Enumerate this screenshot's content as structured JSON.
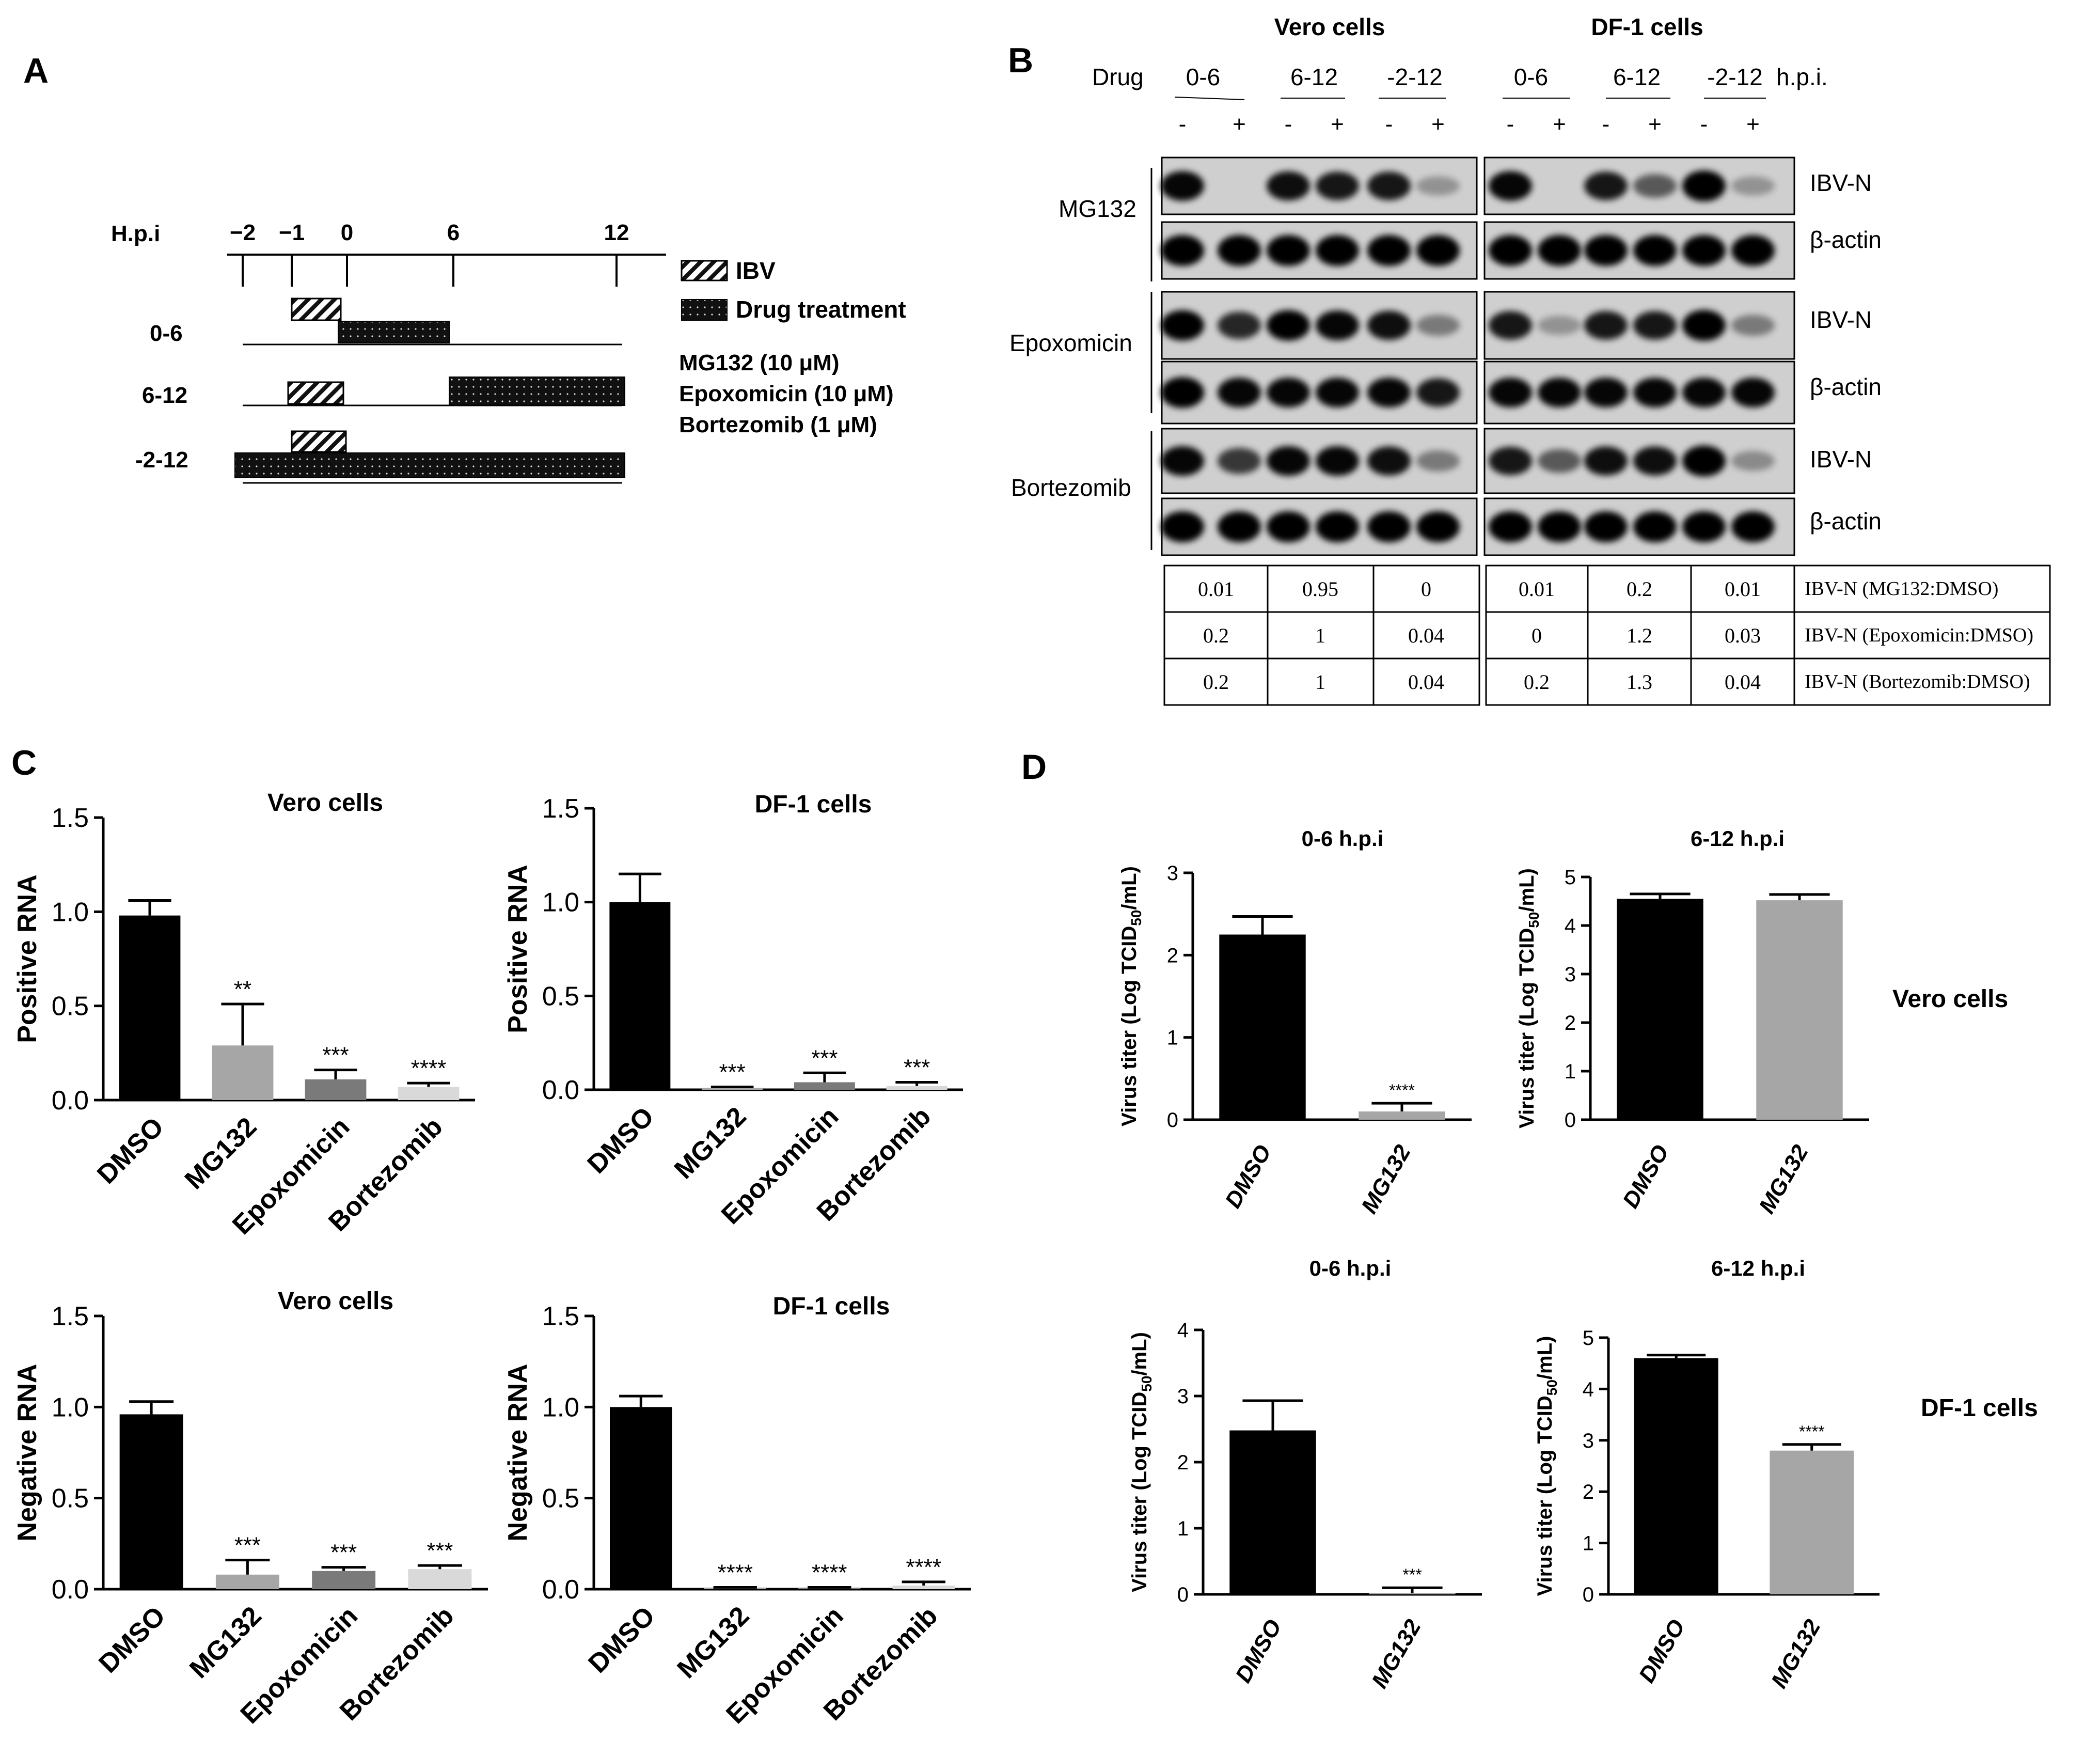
{
  "panels": {
    "a": "A",
    "b": "B",
    "c": "C",
    "d": "D"
  },
  "timeline": {
    "hpi_label": "H.p.i",
    "ticks": [
      "−2",
      "−1",
      "0",
      "6",
      "12"
    ],
    "rows": [
      "0-6",
      "6-12",
      "-2-12"
    ],
    "legend_ibv": "IBV",
    "legend_drug": "Drug treatment",
    "drugs": [
      "MG132 (10 μM)",
      "Epoxomicin (10 μM)",
      "Bortezomib (1 μM)"
    ]
  },
  "western": {
    "vero_title": "Vero cells",
    "df1_title": "DF-1 cells",
    "drug_label": "Drug",
    "vero_groups": [
      "0-6",
      "6-12",
      "-2-12"
    ],
    "df1_groups": [
      "0-6",
      "6-12",
      "-2-12"
    ],
    "hpi_suffix": "h.p.i.",
    "signs": [
      "-",
      "+"
    ],
    "treatments": [
      "MG132",
      "Epoxomicin",
      "Bortezomib"
    ],
    "band_labels": [
      "IBV-N",
      "β-actin"
    ],
    "vero_table": [
      [
        "0.01",
        "0.95",
        "0"
      ],
      [
        "0.2",
        "1",
        "0.04"
      ],
      [
        "0.2",
        "1",
        "0.04"
      ]
    ],
    "df1_table": [
      [
        "0.01",
        "0.2",
        "0.01"
      ],
      [
        "0",
        "1.2",
        "0.03"
      ],
      [
        "0.2",
        "1.3",
        "0.04"
      ]
    ],
    "table_row_labels": [
      "IBV-N (MG132:DMSO)",
      "IBV-N (Epoxomicin:DMSO)",
      "IBV-N (Bortezomib:DMSO)"
    ]
  },
  "side_labels": {
    "vero": "Vero cells",
    "df1": "DF-1 cells"
  },
  "chart_data": [
    {
      "id": "c1",
      "type": "bar",
      "title": "Vero cells",
      "ylabel": "Positive RNA",
      "categories": [
        "DMSO",
        "MG132",
        "Epoxomicin",
        "Bortezomib"
      ],
      "values": [
        0.98,
        0.29,
        0.11,
        0.07
      ],
      "errors": [
        0.08,
        0.22,
        0.05,
        0.02
      ],
      "significance": [
        "",
        "**",
        "***",
        "****"
      ],
      "colors": [
        "#000000",
        "#a6a6a6",
        "#7a7a7a",
        "#d9d9d9"
      ],
      "ylim": [
        0,
        1.5
      ],
      "yticks": [
        "0.0",
        "0.5",
        "1.0",
        "1.5"
      ]
    },
    {
      "id": "c2",
      "type": "bar",
      "title": "DF-1 cells",
      "ylabel": "Positive RNA",
      "categories": [
        "DMSO",
        "MG132",
        "Epoxomicin",
        "Bortezomib"
      ],
      "values": [
        1.0,
        0.01,
        0.04,
        0.02
      ],
      "errors": [
        0.15,
        0.005,
        0.05,
        0.02
      ],
      "significance": [
        "",
        "***",
        "***",
        "***"
      ],
      "colors": [
        "#000000",
        "#a6a6a6",
        "#7a7a7a",
        "#d9d9d9"
      ],
      "ylim": [
        0,
        1.5
      ],
      "yticks": [
        "0.0",
        "0.5",
        "1.0",
        "1.5"
      ]
    },
    {
      "id": "c3",
      "type": "bar",
      "title": "Vero cells",
      "ylabel": "Negative RNA",
      "categories": [
        "DMSO",
        "MG132",
        "Epoxomicin",
        "Bortezomib"
      ],
      "values": [
        0.96,
        0.08,
        0.1,
        0.11
      ],
      "errors": [
        0.07,
        0.08,
        0.02,
        0.02
      ],
      "significance": [
        "",
        "***",
        "***",
        "***"
      ],
      "colors": [
        "#000000",
        "#a6a6a6",
        "#7a7a7a",
        "#d9d9d9"
      ],
      "ylim": [
        0,
        1.5
      ],
      "yticks": [
        "0.0",
        "0.5",
        "1.0",
        "1.5"
      ]
    },
    {
      "id": "c4",
      "type": "bar",
      "title": "DF-1 cells",
      "ylabel": "Negative RNA",
      "categories": [
        "DMSO",
        "MG132",
        "Epoxomicin",
        "Bortezomib"
      ],
      "values": [
        1.0,
        0.005,
        0.005,
        0.02
      ],
      "errors": [
        0.06,
        0.005,
        0.005,
        0.02
      ],
      "significance": [
        "",
        "****",
        "****",
        "****"
      ],
      "colors": [
        "#000000",
        "#a6a6a6",
        "#7a7a7a",
        "#d9d9d9"
      ],
      "ylim": [
        0,
        1.5
      ],
      "yticks": [
        "0.0",
        "0.5",
        "1.0",
        "1.5"
      ]
    },
    {
      "id": "d1",
      "type": "bar",
      "title": "0-6 h.p.i",
      "ylabel": "Virus titer (Log TCID50/mL)",
      "categories": [
        "DMSO",
        "MG132"
      ],
      "values": [
        2.25,
        0.1
      ],
      "errors": [
        0.22,
        0.1
      ],
      "significance": [
        "",
        "****"
      ],
      "colors": [
        "#000000",
        "#a6a6a6"
      ],
      "ylim": [
        0,
        3
      ],
      "yticks": [
        "0",
        "1",
        "2",
        "3"
      ]
    },
    {
      "id": "d2",
      "type": "bar",
      "title": "6-12 h.p.i",
      "ylabel": "Virus titer (Log TCID50/mL)",
      "categories": [
        "DMSO",
        "MG132"
      ],
      "values": [
        4.55,
        4.52
      ],
      "errors": [
        0.1,
        0.12
      ],
      "significance": [
        "",
        ""
      ],
      "colors": [
        "#000000",
        "#a6a6a6"
      ],
      "ylim": [
        0,
        5
      ],
      "yticks": [
        "0",
        "1",
        "2",
        "3",
        "4",
        "5"
      ]
    },
    {
      "id": "d3",
      "type": "bar",
      "title": "0-6 h.p.i",
      "ylabel": "Virus titer (Log TCID50/mL)",
      "categories": [
        "DMSO",
        "MG132"
      ],
      "values": [
        2.48,
        0.02
      ],
      "errors": [
        0.45,
        0.08
      ],
      "significance": [
        "",
        "***"
      ],
      "colors": [
        "#000000",
        "#a6a6a6"
      ],
      "ylim": [
        0,
        4
      ],
      "yticks": [
        "0",
        "1",
        "2",
        "3",
        "4"
      ]
    },
    {
      "id": "d4",
      "type": "bar",
      "title": "6-12 h.p.i",
      "ylabel": "Virus titer (Log TCID50/mL)",
      "categories": [
        "DMSO",
        "MG132"
      ],
      "values": [
        4.6,
        2.8
      ],
      "errors": [
        0.06,
        0.12
      ],
      "significance": [
        "",
        "****"
      ],
      "colors": [
        "#000000",
        "#a6a6a6"
      ],
      "ylim": [
        0,
        5
      ],
      "yticks": [
        "0",
        "1",
        "2",
        "3",
        "4",
        "5"
      ]
    }
  ]
}
